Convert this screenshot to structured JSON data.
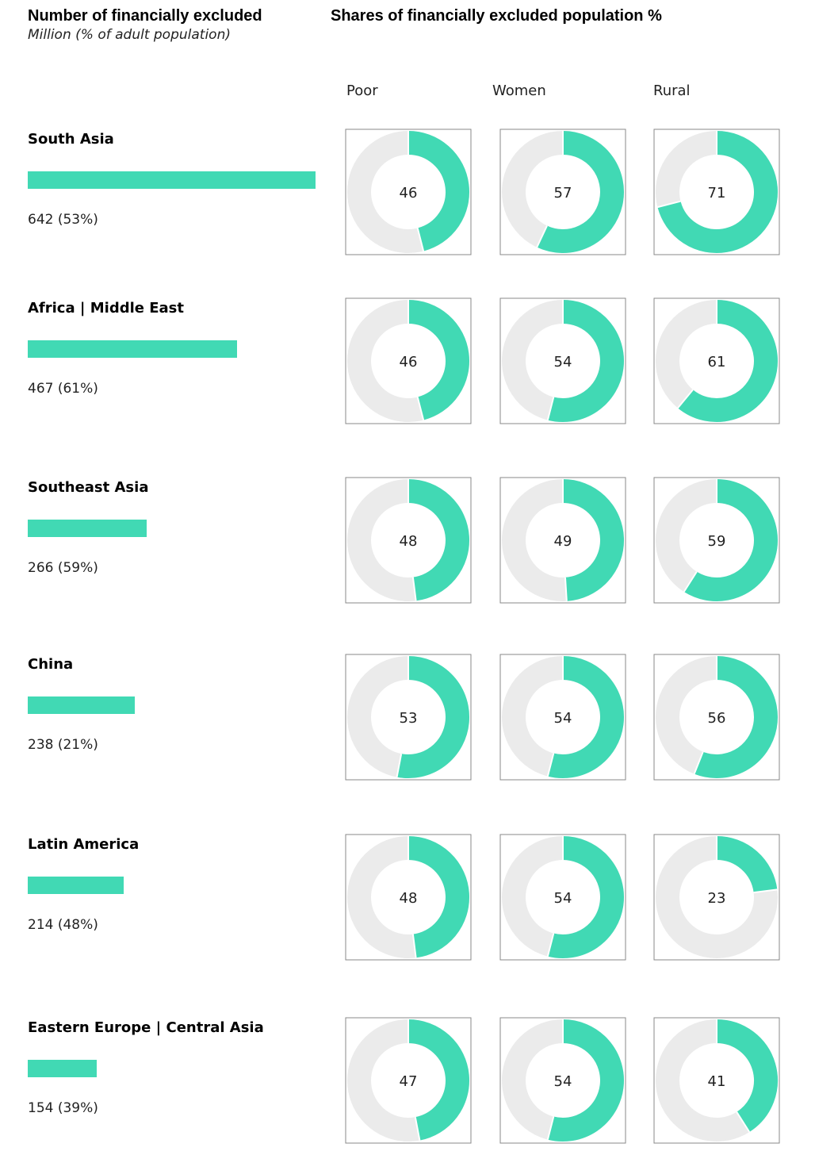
{
  "header": {
    "left_title": "Number of financially excluded",
    "left_subtitle": "Million (% of adult population)",
    "right_title": "Shares of financially excluded population %"
  },
  "columns": [
    "Poor",
    "Women",
    "Rural"
  ],
  "colors": {
    "accent": "#41d9b4",
    "track": "#ebebeb",
    "frame": "#888888"
  },
  "chart_data": [
    {
      "type": "bar",
      "title": "Number of financially excluded",
      "subtitle": "Million (% of adult population)",
      "categories": [
        "South Asia",
        "Africa | Middle East",
        "Southeast Asia",
        "China",
        "Latin America",
        "Eastern Europe | Central Asia"
      ],
      "values": [
        642,
        467,
        266,
        238,
        214,
        154
      ],
      "labels": [
        "642 (53%)",
        "467 (61%)",
        "266 (59%)",
        "238 (21%)",
        "214 (48%)",
        "154 (39%)"
      ],
      "pct_of_adult_population": [
        53,
        61,
        59,
        21,
        48,
        39
      ]
    },
    {
      "type": "pie",
      "title": "Shares of financially excluded population %",
      "categories": [
        "South Asia",
        "Africa | Middle East",
        "Southeast Asia",
        "China",
        "Latin America",
        "Eastern Europe | Central Asia"
      ],
      "series": [
        {
          "name": "Poor",
          "values": [
            46,
            46,
            48,
            53,
            48,
            47
          ]
        },
        {
          "name": "Women",
          "values": [
            57,
            54,
            49,
            54,
            54,
            54
          ]
        },
        {
          "name": "Rural",
          "values": [
            71,
            61,
            59,
            56,
            23,
            41
          ]
        }
      ]
    }
  ]
}
